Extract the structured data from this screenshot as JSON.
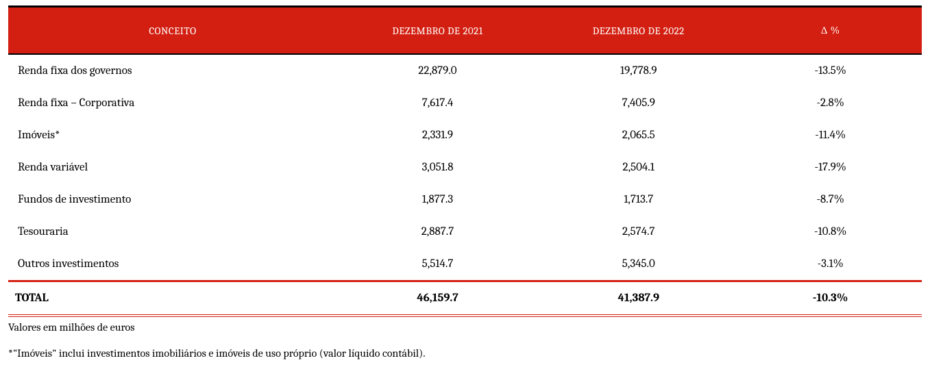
{
  "table": {
    "type": "table",
    "header_bg": "#d31f11",
    "header_text_color": "#ffffff",
    "border_top_color": "#000000",
    "total_border_color": "#d31f11",
    "columns": [
      {
        "key": "concept",
        "label": "CONCEITO",
        "align": "left",
        "width_pct": 36
      },
      {
        "key": "dec21",
        "label": "DEZEMBRO DE 2021",
        "align": "center",
        "width_pct": 22
      },
      {
        "key": "dec22",
        "label": "DEZEMBRO DE 2022",
        "align": "center",
        "width_pct": 22
      },
      {
        "key": "delta",
        "label": "Δ %",
        "align": "center",
        "width_pct": 20
      }
    ],
    "rows": [
      {
        "concept": "Renda fixa dos governos",
        "dec21": "22,879.0",
        "dec22": "19,778.9",
        "delta": "-13.5%"
      },
      {
        "concept": "Renda fixa – Corporativa",
        "dec21": "7,617.4",
        "dec22": "7,405.9",
        "delta": "-2.8%"
      },
      {
        "concept": "Imóveis*",
        "dec21": "2,331.9",
        "dec22": "2,065.5",
        "delta": "-11.4%"
      },
      {
        "concept": "Renda variável",
        "dec21": "3,051.8",
        "dec22": "2,504.1",
        "delta": "-17.9%"
      },
      {
        "concept": "Fundos de investimento",
        "dec21": "1,877.3",
        "dec22": "1,713.7",
        "delta": "-8.7%"
      },
      {
        "concept": "Tesouraria",
        "dec21": "2,887.7",
        "dec22": "2,574.7",
        "delta": "-10.8%"
      },
      {
        "concept": "Outros investimentos",
        "dec21": "5,514.7",
        "dec22": "5,345.0",
        "delta": "-3.1%"
      }
    ],
    "total": {
      "concept": "TOTAL",
      "dec21": "46,159.7",
      "dec22": "41,387.9",
      "delta": "-10.3%"
    }
  },
  "notes": {
    "line1": "Valores em milhões de euros",
    "line2": "*\"Imóveis\" inclui investimentos imobiliários e imóveis de uso próprio (valor líquido contábil)."
  }
}
